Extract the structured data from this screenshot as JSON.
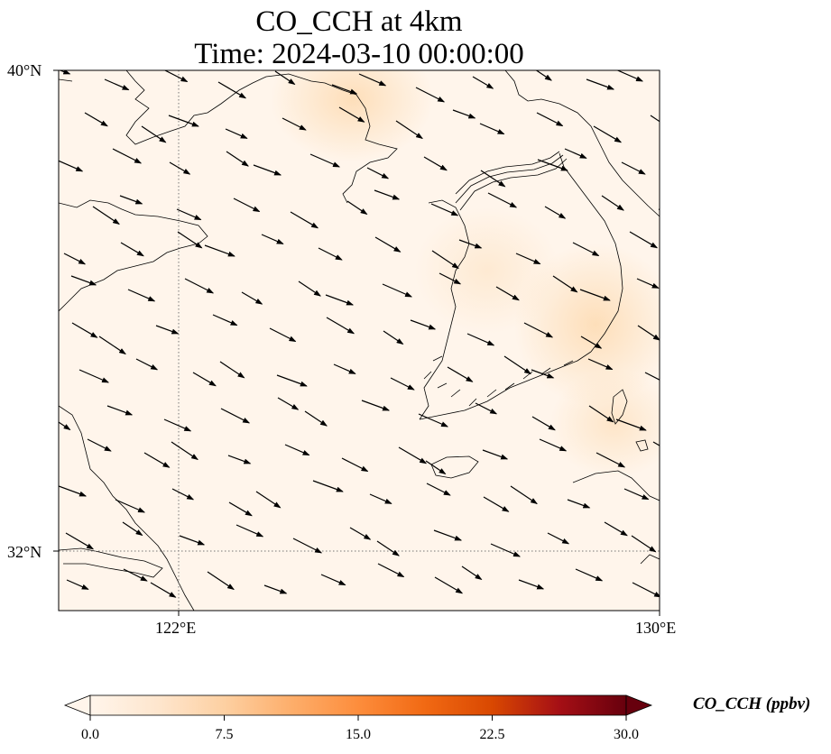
{
  "title": {
    "line1": "CO_CCH at 4km",
    "line2": "Time: 2024-03-10 00:00:00"
  },
  "axes": {
    "lat_labels": [
      "40°N",
      "32°N"
    ],
    "lon_labels": [
      "122°E",
      "130°E"
    ],
    "lat_range": [
      31,
      40
    ],
    "lon_range": [
      120,
      130
    ],
    "gridlines": {
      "lat": [
        32
      ],
      "lon": [
        122
      ],
      "style": "dotted"
    }
  },
  "colorbar": {
    "label": "CO_CCH (ppbv)",
    "ticks": [
      "0.0",
      "7.5",
      "15.0",
      "22.5",
      "30.0"
    ],
    "range": [
      0,
      30
    ],
    "extend": "both",
    "colormap": [
      "#fff5eb",
      "#fee6ce",
      "#fdd0a2",
      "#fdae6b",
      "#fd8d3c",
      "#f16913",
      "#d94801",
      "#a50f15",
      "#67000d"
    ]
  },
  "field": {
    "background_color": "#fff5eb",
    "highlight_color": "#fde4c4",
    "wind_direction": "northwest to southeast"
  }
}
